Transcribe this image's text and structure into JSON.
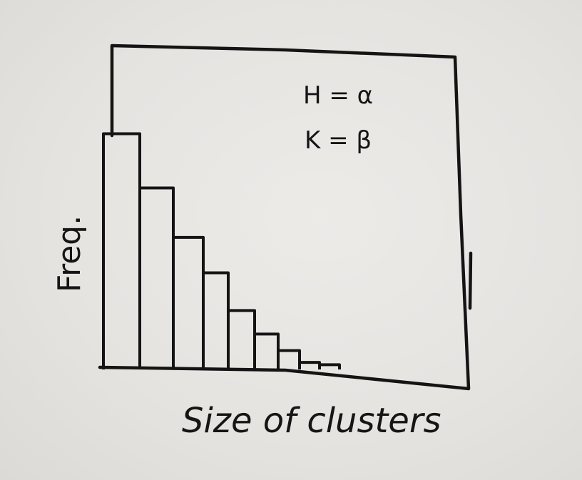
{
  "chart_data": {
    "type": "bar",
    "title": "",
    "xlabel": "Size of clusters",
    "ylabel": "Freq.",
    "annotations": [
      "H = α",
      "K = β"
    ],
    "values": [
      100,
      77,
      56,
      41,
      25,
      15,
      8,
      3,
      2
    ],
    "ylim": [
      0,
      118
    ],
    "grid": false,
    "colors": {
      "ink": "#141414",
      "paper": "#e6e4e1"
    }
  }
}
